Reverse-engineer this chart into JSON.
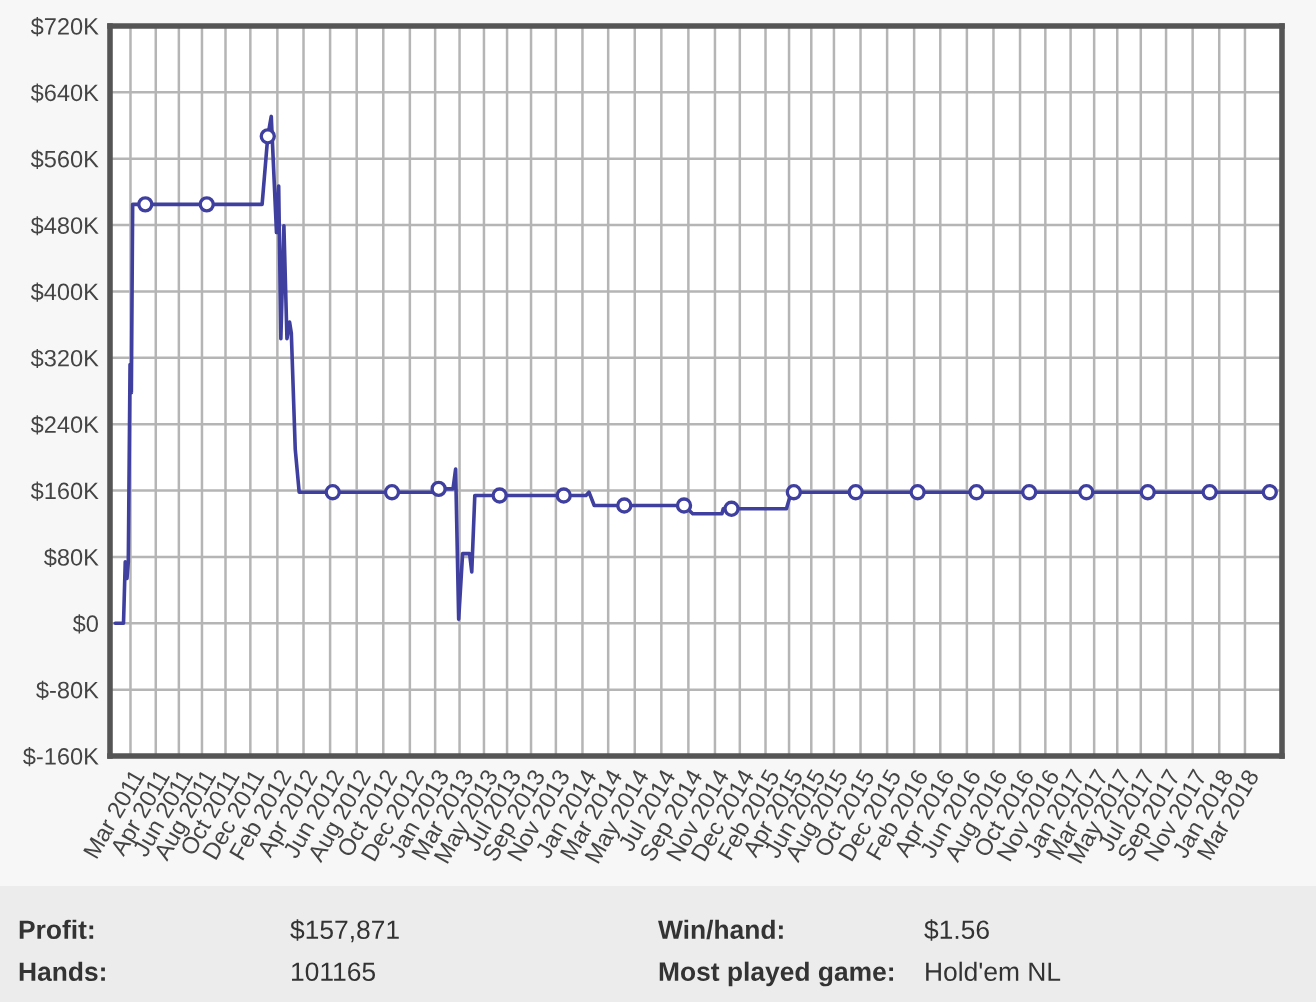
{
  "chart_data": {
    "type": "line",
    "xlim": [
      "2011-01-13",
      "2018-05-25"
    ],
    "xticks": [
      {
        "value": "2011-03",
        "label": "Mar 2011"
      },
      {
        "value": "2011-04-28",
        "label": "Apr 2011"
      },
      {
        "value": "2011-06-20",
        "label": "Jun 2011"
      },
      {
        "value": "2011-08-12",
        "label": "Aug 2011"
      },
      {
        "value": "2011-10-05",
        "label": "Oct 2011"
      },
      {
        "value": "2011-12",
        "label": "Dec 2011"
      },
      {
        "value": "2012-02",
        "label": "Feb 2012"
      },
      {
        "value": "2012-04",
        "label": "Apr 2012"
      },
      {
        "value": "2012-06",
        "label": "Jun 2012"
      },
      {
        "value": "2012-08",
        "label": "Aug 2012"
      },
      {
        "value": "2012-10",
        "label": "Oct 2012"
      },
      {
        "value": "2012-12",
        "label": "Dec 2012"
      },
      {
        "value": "2013-01-28",
        "label": "Jan 2013"
      },
      {
        "value": "2013-03-25",
        "label": "Mar 2013"
      },
      {
        "value": "2013-05-20",
        "label": "May 2013"
      },
      {
        "value": "2013-07-12",
        "label": "Jul 2013"
      },
      {
        "value": "2013-09-05",
        "label": "Sep 2013"
      },
      {
        "value": "2013-11",
        "label": "Nov 2013"
      },
      {
        "value": "2014-01",
        "label": "Jan 2014"
      },
      {
        "value": "2014-03",
        "label": "Mar 2014"
      },
      {
        "value": "2014-05",
        "label": "May 2014"
      },
      {
        "value": "2014-07",
        "label": "Jul 2014"
      },
      {
        "value": "2014-09",
        "label": "Sep 2014"
      },
      {
        "value": "2014-11",
        "label": "Nov 2014"
      },
      {
        "value": "2014-12-28",
        "label": "Dec 2014"
      },
      {
        "value": "2015-02-25",
        "label": "Feb 2015"
      },
      {
        "value": "2015-04-20",
        "label": "Apr 2015"
      },
      {
        "value": "2015-06-10",
        "label": "Jun 2015"
      },
      {
        "value": "2015-08",
        "label": "Aug 2015"
      },
      {
        "value": "2015-10",
        "label": "Oct 2015"
      },
      {
        "value": "2015-12",
        "label": "Dec 2015"
      },
      {
        "value": "2016-02",
        "label": "Feb 2016"
      },
      {
        "value": "2016-04",
        "label": "Apr 2016"
      },
      {
        "value": "2016-06",
        "label": "Jun 2016"
      },
      {
        "value": "2016-08",
        "label": "Aug 2016"
      },
      {
        "value": "2016-10",
        "label": "Oct 2016"
      },
      {
        "value": "2016-11-28",
        "label": "Nov 2016"
      },
      {
        "value": "2017-01-25",
        "label": "Jan 2017"
      },
      {
        "value": "2017-03-20",
        "label": "Mar 2017"
      },
      {
        "value": "2017-05-12",
        "label": "May 2017"
      },
      {
        "value": "2017-07-05",
        "label": "Jul 2017"
      },
      {
        "value": "2017-09",
        "label": "Sep 2017"
      },
      {
        "value": "2017-11",
        "label": "Nov 2017"
      },
      {
        "value": "2018-01",
        "label": "Jan 2018"
      },
      {
        "value": "2018-03",
        "label": "Mar 2018"
      }
    ],
    "ylim": [
      -160,
      720
    ],
    "yticks": [
      {
        "value": -160,
        "label": "$-160K"
      },
      {
        "value": -80,
        "label": "$-80K"
      },
      {
        "value": 0,
        "label": "$0"
      },
      {
        "value": 80,
        "label": "$80K"
      },
      {
        "value": 160,
        "label": "$160K"
      },
      {
        "value": 240,
        "label": "$240K"
      },
      {
        "value": 320,
        "label": "$320K"
      },
      {
        "value": 400,
        "label": "$400K"
      },
      {
        "value": 480,
        "label": "$480K"
      },
      {
        "value": 560,
        "label": "$560K"
      },
      {
        "value": 640,
        "label": "$640K"
      },
      {
        "value": 720,
        "label": "$720K"
      }
    ],
    "grid": true,
    "series": [
      {
        "color": "#3f3f9f",
        "marker": "none",
        "x": [
          "2011-01-25",
          "2011-02-11",
          "2011-02-13",
          "2011-02-17",
          "2011-02-21",
          "2011-02-24",
          "2011-02-28",
          "2011-03-03",
          "2011-03-06",
          "2011-12-28",
          "2012-01-10",
          "2012-01-18",
          "2012-01-30",
          "2012-02-04",
          "2012-02-09",
          "2012-02-16",
          "2012-02-23",
          "2012-02-29",
          "2012-03-04",
          "2012-03-13",
          "2012-03-22",
          "2013-01-25",
          "2013-02-05",
          "2013-03-10",
          "2013-03-16",
          "2013-03-23",
          "2013-04-01",
          "2013-04-17",
          "2013-04-22",
          "2013-04-29",
          "2014-01-09",
          "2014-01-16",
          "2014-01-28",
          "2014-08-22",
          "2014-09-11",
          "2014-11-17",
          "2014-11-20",
          "2015-04-14",
          "2015-04-25",
          "2018-04-27"
        ],
        "values": [
          0,
          0,
          0,
          74,
          54,
          74,
          312,
          278,
          505,
          505,
          587,
          611,
          471,
          527,
          343,
          479,
          343,
          363,
          350,
          210,
          158,
          158,
          162,
          162,
          186,
          5,
          84,
          84,
          62,
          154,
          154,
          158,
          142,
          142,
          132,
          132,
          138,
          138,
          158,
          158
        ]
      },
      {
        "type": "scatter",
        "color": "#3f3f9f",
        "marker": "circle",
        "x": [
          "2011-04-04",
          "2011-08-23",
          "2012-01-10",
          "2012-06-07",
          "2012-10-21",
          "2013-02-05",
          "2013-06-25",
          "2013-11-19",
          "2014-04-07",
          "2014-08-22",
          "2014-12-09",
          "2015-05-01",
          "2015-09-20",
          "2016-02-09",
          "2016-06-23",
          "2016-10-22",
          "2017-03-02",
          "2017-07-21",
          "2017-12-10",
          "2018-04-27"
        ],
        "values": [
          505,
          505,
          587,
          158,
          158,
          162,
          154,
          154,
          142,
          142,
          138,
          158,
          158,
          158,
          158,
          158,
          158,
          158,
          158,
          158
        ]
      }
    ],
    "annotations": [
      "Profit:",
      "$157,871",
      "Win/hand:",
      "$1.56",
      "Hands:",
      "101165",
      "Most played game:",
      "Hold'em NL"
    ]
  }
}
